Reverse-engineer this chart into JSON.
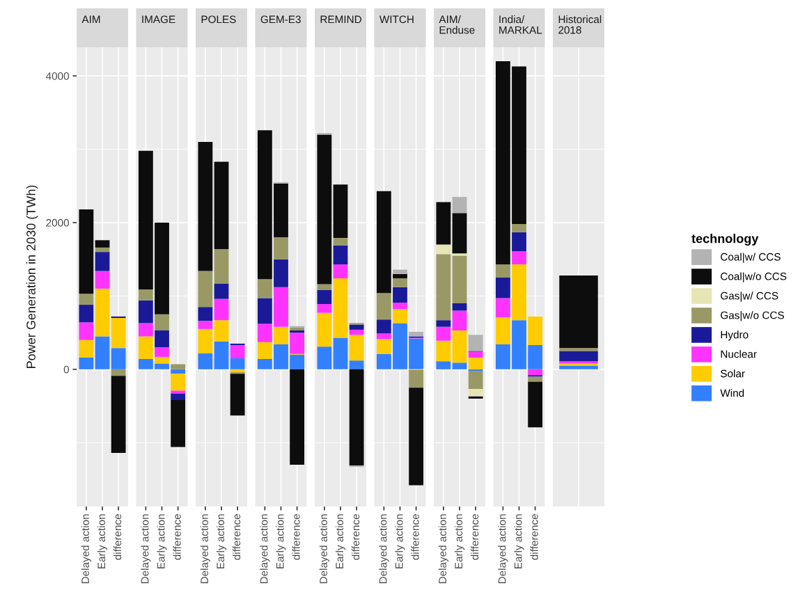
{
  "chart_data": [
    {
      "type": "bar",
      "stacked": true,
      "title": "AIM",
      "ylabel": "Power Generation in 2030 (TWh)",
      "categories": [
        "Delayed action",
        "Early action",
        "difference"
      ],
      "ylim": [
        -1870,
        4390
      ],
      "yticks": [
        0,
        2000,
        4000
      ],
      "grid": true,
      "legend": "right",
      "legend_title": "technology",
      "series": [
        {
          "name": "Wind",
          "color": "#3380ff",
          "values": [
            160,
            450,
            290
          ]
        },
        {
          "name": "Solar",
          "color": "#ffcc00",
          "values": [
            240,
            650,
            410
          ]
        },
        {
          "name": "Nuclear",
          "color": "#ff33ff",
          "values": [
            240,
            240,
            0
          ]
        },
        {
          "name": "Hydro",
          "color": "#1a1a99",
          "values": [
            240,
            260,
            20
          ]
        },
        {
          "name": "Gas|w/o CCS",
          "color": "#999966",
          "values": [
            150,
            60,
            -90
          ]
        },
        {
          "name": "Gas|w/ CCS",
          "color": "#e6e6b3",
          "values": [
            0,
            0,
            0
          ]
        },
        {
          "name": "Coal|w/o CCS",
          "color": "#0d0d0d",
          "values": [
            1150,
            100,
            -1050
          ]
        },
        {
          "name": "Coal|w/ CCS",
          "color": "#b3b3b3",
          "values": [
            0,
            0,
            0
          ]
        }
      ]
    },
    {
      "type": "bar",
      "stacked": true,
      "title": "IMAGE",
      "categories": [
        "Delayed action",
        "Early action",
        "difference"
      ],
      "ylim": [
        -1870,
        4390
      ],
      "yticks": [
        0,
        2000,
        4000
      ],
      "grid": true,
      "tick_labels": "x",
      "series": [
        {
          "color": "#3380ff",
          "values": [
            140,
            80,
            -60
          ]
        },
        {
          "color": "#ffcc00",
          "values": [
            310,
            90,
            -230
          ]
        },
        {
          "color": "#ff33ff",
          "values": [
            180,
            130,
            -40
          ]
        },
        {
          "color": "#1a1a99",
          "values": [
            310,
            230,
            -90
          ]
        },
        {
          "color": "#999966",
          "values": [
            150,
            220,
            70
          ]
        },
        {
          "color": "#e6e6b3",
          "values": [
            0,
            0,
            0
          ]
        },
        {
          "color": "#0d0d0d",
          "values": [
            1890,
            1250,
            -640
          ]
        },
        {
          "color": "#b3b3b3",
          "values": [
            0,
            0,
            0
          ]
        }
      ]
    },
    {
      "type": "bar",
      "stacked": true,
      "title": "POLES",
      "categories": [
        "Delayed action",
        "Early action",
        "difference"
      ],
      "ylim": [
        -1870,
        4390
      ],
      "yticks": [
        0,
        2000,
        4000
      ],
      "grid": true,
      "tick_labels": "x",
      "series": [
        {
          "color": "#3380ff",
          "values": [
            220,
            380,
            150
          ]
        },
        {
          "color": "#ffcc00",
          "values": [
            330,
            290,
            -40
          ]
        },
        {
          "color": "#ff33ff",
          "values": [
            110,
            290,
            180
          ]
        },
        {
          "color": "#1a1a99",
          "values": [
            190,
            210,
            20
          ]
        },
        {
          "color": "#999966",
          "values": [
            490,
            470,
            -20
          ]
        },
        {
          "color": "#e6e6b3",
          "values": [
            0,
            0,
            0
          ]
        },
        {
          "color": "#0d0d0d",
          "values": [
            1760,
            1190,
            -570
          ]
        },
        {
          "color": "#b3b3b3",
          "values": [
            0,
            0,
            0
          ]
        }
      ]
    },
    {
      "type": "bar",
      "stacked": true,
      "title": "GEM-E3",
      "categories": [
        "Delayed action",
        "Early action",
        "difference"
      ],
      "ylim": [
        -1870,
        4390
      ],
      "yticks": [
        0,
        2000,
        4000
      ],
      "grid": true,
      "tick_labels": "x",
      "series": [
        {
          "color": "#3380ff",
          "values": [
            140,
            340,
            200
          ]
        },
        {
          "color": "#ffcc00",
          "values": [
            230,
            240,
            10
          ]
        },
        {
          "color": "#ff33ff",
          "values": [
            250,
            540,
            290
          ]
        },
        {
          "color": "#1a1a99",
          "values": [
            350,
            380,
            30
          ]
        },
        {
          "color": "#999966",
          "values": [
            260,
            300,
            40
          ]
        },
        {
          "color": "#e6e6b3",
          "values": [
            0,
            0,
            0
          ]
        },
        {
          "color": "#0d0d0d",
          "values": [
            2030,
            730,
            -1300
          ]
        },
        {
          "color": "#b3b3b3",
          "values": [
            0,
            20,
            20
          ]
        }
      ]
    },
    {
      "type": "bar",
      "stacked": true,
      "title": "REMIND",
      "categories": [
        "Delayed action",
        "Early action",
        "difference"
      ],
      "ylim": [
        -1870,
        4390
      ],
      "yticks": [
        0,
        2000,
        4000
      ],
      "grid": true,
      "tick_labels": "x",
      "series": [
        {
          "color": "#3380ff",
          "values": [
            310,
            430,
            120
          ]
        },
        {
          "color": "#ffcc00",
          "values": [
            460,
            810,
            350
          ]
        },
        {
          "color": "#ff33ff",
          "values": [
            120,
            190,
            70
          ]
        },
        {
          "color": "#1a1a99",
          "values": [
            190,
            260,
            70
          ]
        },
        {
          "color": "#999966",
          "values": [
            80,
            100,
            20
          ]
        },
        {
          "color": "#e6e6b3",
          "values": [
            0,
            0,
            0
          ]
        },
        {
          "color": "#0d0d0d",
          "values": [
            2040,
            730,
            -1310
          ]
        },
        {
          "color": "#b3b3b3",
          "values": [
            20,
            0,
            -20
          ]
        }
      ]
    },
    {
      "type": "bar",
      "stacked": true,
      "title": "WITCH",
      "categories": [
        "Delayed action",
        "Early action",
        "difference"
      ],
      "ylim": [
        -1870,
        4390
      ],
      "yticks": [
        0,
        2000,
        4000
      ],
      "grid": true,
      "tick_labels": "x",
      "series": [
        {
          "color": "#3380ff",
          "values": [
            210,
            630,
            420
          ]
        },
        {
          "color": "#ffcc00",
          "values": [
            200,
            190,
            -10
          ]
        },
        {
          "color": "#ff33ff",
          "values": [
            80,
            90,
            10
          ]
        },
        {
          "color": "#1a1a99",
          "values": [
            190,
            210,
            20
          ]
        },
        {
          "color": "#999966",
          "values": [
            360,
            120,
            -240
          ]
        },
        {
          "color": "#e6e6b3",
          "values": [
            0,
            0,
            0
          ]
        },
        {
          "color": "#0d0d0d",
          "values": [
            1390,
            60,
            -1330
          ]
        },
        {
          "color": "#b3b3b3",
          "values": [
            0,
            60,
            60
          ]
        }
      ]
    },
    {
      "type": "bar",
      "stacked": true,
      "title": "AIM/\nEnduse",
      "categories": [
        "Delayed action",
        "Early action",
        "difference"
      ],
      "ylim": [
        -1870,
        4390
      ],
      "yticks": [
        0,
        2000,
        4000
      ],
      "grid": true,
      "tick_labels": "x",
      "series": [
        {
          "color": "#3380ff",
          "values": [
            110,
            90,
            -20
          ]
        },
        {
          "color": "#ffcc00",
          "values": [
            280,
            440,
            160
          ]
        },
        {
          "color": "#ff33ff",
          "values": [
            190,
            270,
            80
          ]
        },
        {
          "color": "#1a1a99",
          "values": [
            90,
            100,
            10
          ]
        },
        {
          "color": "#999966",
          "values": [
            900,
            650,
            -250
          ]
        },
        {
          "color": "#e6e6b3",
          "values": [
            130,
            30,
            -100
          ]
        },
        {
          "color": "#0d0d0d",
          "values": [
            580,
            550,
            -30
          ]
        },
        {
          "color": "#b3b3b3",
          "values": [
            0,
            220,
            220
          ]
        }
      ]
    },
    {
      "type": "bar",
      "stacked": true,
      "title": "India/\nMARKAL",
      "categories": [
        "Delayed action",
        "Early action",
        "difference"
      ],
      "ylim": [
        -1870,
        4390
      ],
      "yticks": [
        0,
        2000,
        4000
      ],
      "grid": true,
      "tick_labels": "x",
      "series": [
        {
          "color": "#3380ff",
          "values": [
            340,
            670,
            330
          ]
        },
        {
          "color": "#ffcc00",
          "values": [
            370,
            760,
            390
          ]
        },
        {
          "color": "#ff33ff",
          "values": [
            260,
            180,
            -80
          ]
        },
        {
          "color": "#1a1a99",
          "values": [
            280,
            260,
            -20
          ]
        },
        {
          "color": "#999966",
          "values": [
            180,
            110,
            -70
          ]
        },
        {
          "color": "#e6e6b3",
          "values": [
            0,
            0,
            0
          ]
        },
        {
          "color": "#0d0d0d",
          "values": [
            2770,
            2150,
            -620
          ]
        },
        {
          "color": "#b3b3b3",
          "values": [
            0,
            0,
            0
          ]
        }
      ]
    },
    {
      "type": "bar",
      "stacked": true,
      "title": "Historical\n2018",
      "categories": [
        null
      ],
      "ylim": [
        -1870,
        4390
      ],
      "yticks": [
        0,
        2000,
        4000
      ],
      "grid": true,
      "tick_labels": false,
      "series": [
        {
          "color": "#3380ff",
          "values": [
            50
          ]
        },
        {
          "color": "#ffcc00",
          "values": [
            30
          ]
        },
        {
          "color": "#ff33ff",
          "values": [
            30
          ]
        },
        {
          "color": "#1a1a99",
          "values": [
            140
          ]
        },
        {
          "color": "#999966",
          "values": [
            40
          ]
        },
        {
          "color": "#e6e6b3",
          "values": [
            0
          ]
        },
        {
          "color": "#0d0d0d",
          "values": [
            990
          ]
        },
        {
          "color": "#b3b3b3",
          "values": [
            0
          ]
        }
      ]
    }
  ]
}
